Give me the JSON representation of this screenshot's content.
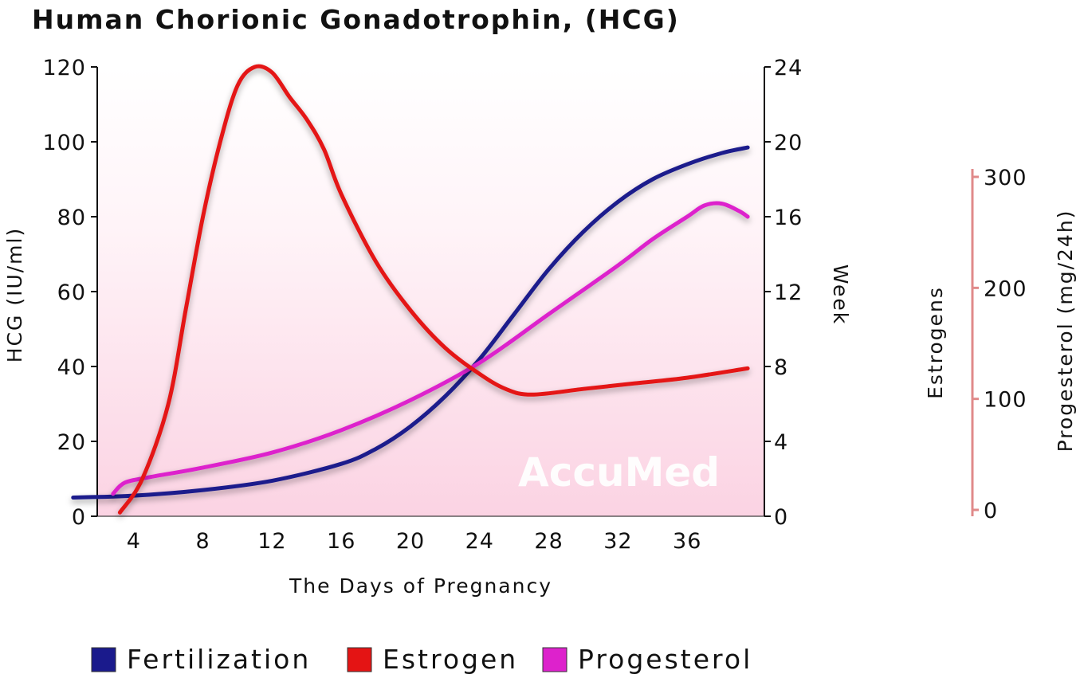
{
  "chart_data": {
    "type": "line",
    "title": "Human Chorionic Gonadotrophin, (HCG)",
    "xlabel": "The Days of Pregnancy",
    "ylabel": "HCG (IU/ml)",
    "y2label": "Week",
    "y3label": "Estrogens",
    "y4label": "Progesterol (mg/24h)",
    "xlim": [
      0,
      40
    ],
    "ylim": [
      0,
      120
    ],
    "y2lim": [
      0,
      24
    ],
    "y3lim": [
      0,
      300
    ],
    "xticks": [
      "4",
      "8",
      "12",
      "16",
      "20",
      "24",
      "28",
      "32",
      "36"
    ],
    "yticks": [
      "0",
      "20",
      "40",
      "60",
      "80",
      "100",
      "120"
    ],
    "y2ticks": [
      "0",
      "4",
      "8",
      "12",
      "16",
      "20",
      "24"
    ],
    "y3ticks": [
      "0",
      "100",
      "200",
      "300"
    ],
    "grid": false,
    "legend_position": "bottom",
    "watermark": "AccuMed",
    "series": [
      {
        "name": "Fertilization",
        "color": "#1a1a8c",
        "points": [
          [
            0.5,
            5
          ],
          [
            4,
            5.5
          ],
          [
            8,
            7
          ],
          [
            12,
            9.5
          ],
          [
            16,
            14
          ],
          [
            18,
            18
          ],
          [
            20,
            24
          ],
          [
            22,
            32
          ],
          [
            24,
            42
          ],
          [
            26,
            54
          ],
          [
            28,
            66
          ],
          [
            30,
            76
          ],
          [
            32,
            84
          ],
          [
            34,
            90
          ],
          [
            36,
            94
          ],
          [
            38,
            97
          ],
          [
            39.5,
            98.5
          ]
        ]
      },
      {
        "name": "Estrogen",
        "color": "#e41414",
        "points": [
          [
            3.2,
            1
          ],
          [
            4.5,
            10
          ],
          [
            6,
            30
          ],
          [
            7,
            55
          ],
          [
            8,
            80
          ],
          [
            9,
            100
          ],
          [
            10,
            115
          ],
          [
            11,
            120
          ],
          [
            12,
            118.5
          ],
          [
            13,
            112
          ],
          [
            14,
            106
          ],
          [
            15,
            98
          ],
          [
            16,
            86
          ],
          [
            18,
            68
          ],
          [
            20,
            55
          ],
          [
            22,
            45
          ],
          [
            24,
            38
          ],
          [
            25.5,
            34
          ],
          [
            27,
            32.5
          ],
          [
            30,
            34
          ],
          [
            33,
            35.5
          ],
          [
            36,
            37
          ],
          [
            39.5,
            39.5
          ]
        ]
      },
      {
        "name": "Progesterol",
        "color": "#dd22cc",
        "points": [
          [
            2.8,
            6
          ],
          [
            3.5,
            9
          ],
          [
            5,
            10.5
          ],
          [
            8,
            13
          ],
          [
            12,
            17
          ],
          [
            16,
            23
          ],
          [
            20,
            31
          ],
          [
            24,
            41
          ],
          [
            28,
            54
          ],
          [
            32,
            67
          ],
          [
            34,
            74
          ],
          [
            36,
            80
          ],
          [
            37,
            83
          ],
          [
            38,
            83.5
          ],
          [
            39,
            81.5
          ],
          [
            39.5,
            80
          ]
        ]
      }
    ]
  }
}
